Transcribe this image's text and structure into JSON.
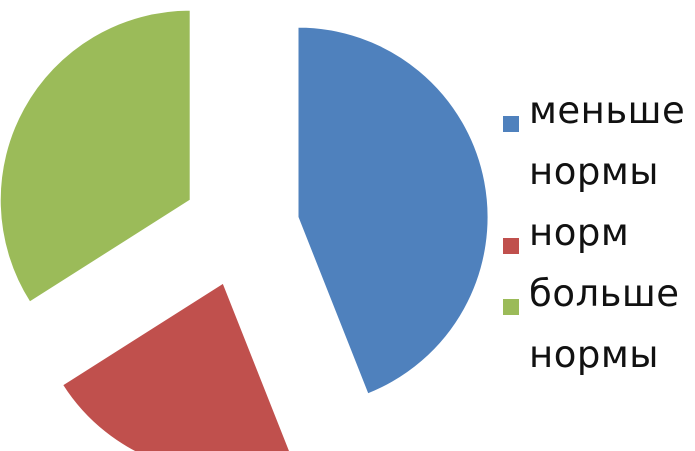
{
  "chart_data": {
    "type": "pie",
    "exploded": true,
    "categories": [
      "меньше нормы",
      "норм",
      "больше нормы"
    ],
    "values": [
      44,
      22,
      34
    ],
    "colors": [
      "#4F81BD",
      "#C0504D",
      "#9BBB59"
    ],
    "legend_position": "right",
    "start_angle_deg": 0,
    "direction": "clockwise"
  }
}
